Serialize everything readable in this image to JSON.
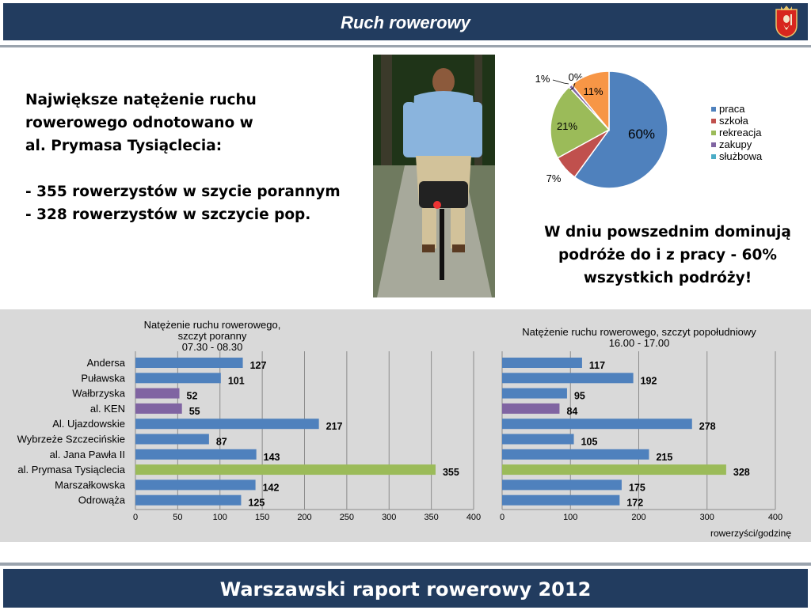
{
  "header": {
    "title": "Ruch rowerowy"
  },
  "footer": {
    "title": "Warszawski raport rowerowy 2012"
  },
  "left_text": {
    "line1": "Największe natężenie ruchu",
    "line2": "rowerowego odnotowano w",
    "line3": "al. Prymasa Tysiąclecia:",
    "line4": "- 355 rowerzystów w szycie porannym",
    "line5": "- 328 rowerzystów w szczycie pop."
  },
  "right_text": {
    "line1": "W dniu powszednim dominują",
    "line2": "podróże do i z pracy - 60%",
    "line3": "wszystkich podróży!"
  },
  "colors": {
    "blue": "#4f81bd",
    "red": "#c0504d",
    "green": "#9bbb59",
    "purple": "#8064a2",
    "teal": "#4bacc6",
    "orange": "#f79646",
    "header": "#223c5f"
  },
  "chart_data": [
    {
      "type": "pie",
      "categories": [
        "praca",
        "szkoła",
        "rekreacja",
        "zakupy",
        "służbowa",
        ""
      ],
      "values": [
        60,
        7,
        21,
        1,
        0,
        11
      ],
      "labels": [
        "60%",
        "7%",
        "21%",
        "1%",
        "0%",
        "11%"
      ],
      "colors": [
        "#4f81bd",
        "#c0504d",
        "#9bbb59",
        "#8064a2",
        "#4bacc6",
        "#f79646"
      ],
      "legend": "right"
    },
    {
      "type": "bar",
      "orientation": "horizontal",
      "title": [
        "Natężenie ruchu rowerowego,",
        "szczyt poranny",
        "07.30 - 08.30"
      ],
      "categories": [
        "Andersa",
        "Puławska",
        "Wałbrzyska",
        "al. KEN",
        "Al. Ujazdowskie",
        "Wybrzeże Szczecińskie",
        "al. Jana Pawła II",
        "al. Prymasa Tysiąclecia",
        "Marszałkowska",
        "Odrowąża"
      ],
      "values": [
        127,
        101,
        52,
        55,
        217,
        87,
        143,
        355,
        142,
        125
      ],
      "bar_colors": [
        "#4f81bd",
        "#4f81bd",
        "#8064a2",
        "#8064a2",
        "#4f81bd",
        "#4f81bd",
        "#4f81bd",
        "#9bbb59",
        "#4f81bd",
        "#4f81bd"
      ],
      "xlim": [
        0,
        400
      ],
      "xticks": [
        0,
        50,
        100,
        150,
        200,
        250,
        300,
        350,
        400
      ],
      "grid": true
    },
    {
      "type": "bar",
      "orientation": "horizontal",
      "title": [
        "Natężenie ruchu rowerowego, szczyt popołudniowy",
        "16.00 - 17.00"
      ],
      "values": [
        117,
        192,
        95,
        84,
        278,
        105,
        215,
        328,
        175,
        172
      ],
      "bar_colors": [
        "#4f81bd",
        "#4f81bd",
        "#4f81bd",
        "#8064a2",
        "#4f81bd",
        "#4f81bd",
        "#4f81bd",
        "#9bbb59",
        "#4f81bd",
        "#4f81bd"
      ],
      "xlim": [
        0,
        400
      ],
      "xticks": [
        0,
        100,
        200,
        300,
        400
      ],
      "xlabel": "rowerzyści/godzinę",
      "grid": true
    }
  ]
}
